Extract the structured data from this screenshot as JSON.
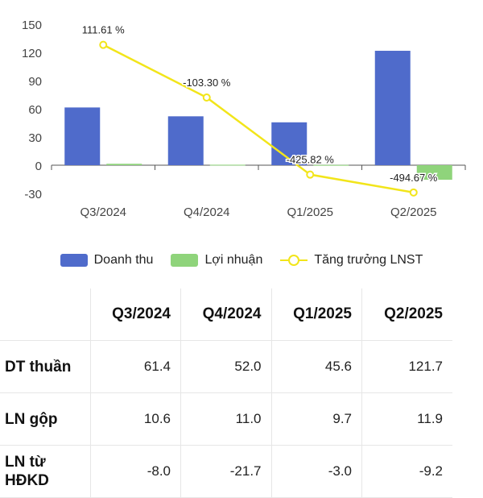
{
  "chart_data": {
    "type": "bar",
    "categories": [
      "Q3/2024",
      "Q4/2024",
      "Q1/2025",
      "Q2/2025"
    ],
    "ylim": [
      -30,
      150
    ],
    "yticks": [
      -30,
      0,
      30,
      60,
      90,
      120,
      150
    ],
    "grid": false,
    "legend_position": "bottom",
    "series": [
      {
        "name": "Doanh thu",
        "kind": "bar",
        "color": "#4f6bcb",
        "values": [
          61.4,
          52.0,
          45.6,
          121.7
        ]
      },
      {
        "name": "Lợi nhuận",
        "kind": "bar",
        "color": "#8fd47b",
        "values": [
          1.5,
          0.5,
          0.3,
          -15.5
        ]
      },
      {
        "name": "Tăng trưởng LNST",
        "kind": "line",
        "color": "#f2e51a",
        "values": [
          128,
          72,
          -10,
          -29
        ],
        "labels": [
          "111.61 %",
          "-103.30 %",
          "-425.82 %",
          "-494.67 %"
        ]
      }
    ]
  },
  "table": {
    "headers": [
      "",
      "Q3/2024",
      "Q4/2024",
      "Q1/2025",
      "Q2/2025"
    ],
    "rows": [
      {
        "label": "DT thuần",
        "values": [
          "61.4",
          "52.0",
          "45.6",
          "121.7"
        ]
      },
      {
        "label": "LN gộp",
        "values": [
          "10.6",
          "11.0",
          "9.7",
          "11.9"
        ]
      },
      {
        "label": "LN từ HĐKD",
        "values": [
          "-8.0",
          "-21.7",
          "-3.0",
          "-9.2"
        ]
      }
    ]
  }
}
